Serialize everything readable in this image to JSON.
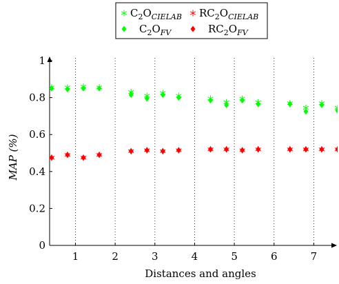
{
  "chart_data": {
    "type": "scatter",
    "xlabel": "Distances and angles",
    "ylabel": "MAP (%)",
    "xlim": [
      0.35,
      7.6
    ],
    "ylim": [
      0,
      1
    ],
    "xticks": [
      1,
      2,
      3,
      4,
      5,
      6,
      7
    ],
    "yticks": [
      0,
      0.2,
      0.4,
      0.6,
      0.8,
      1
    ],
    "ytick_labels": [
      "0",
      "0.2",
      "0.4",
      "0.6",
      "0.8",
      "1"
    ],
    "grid": "vertical dotted at integer x",
    "legend_position": "top",
    "x": [
      0.4,
      0.8,
      1.2,
      1.6,
      2.4,
      2.8,
      3.2,
      3.6,
      4.4,
      4.8,
      5.2,
      5.6,
      6.4,
      6.8,
      7.2,
      7.6
    ],
    "series": [
      {
        "name": "C2O",
        "name_sub": "CIELAB",
        "marker": "star",
        "color": "#00ff00",
        "values": [
          0.855,
          0.855,
          0.86,
          0.855,
          0.83,
          0.81,
          0.825,
          0.81,
          0.795,
          0.775,
          0.795,
          0.775,
          0.77,
          0.745,
          0.77,
          0.745
        ]
      },
      {
        "name": "RC2O",
        "name_sub": "CIELAB",
        "marker": "star",
        "color": "#ff0000",
        "values": [
          0.475,
          0.49,
          0.475,
          0.49,
          0.51,
          0.515,
          0.51,
          0.515,
          0.52,
          0.52,
          0.515,
          0.52,
          0.52,
          0.52,
          0.52,
          0.52
        ]
      },
      {
        "name": "C2O",
        "name_sub": "FV",
        "marker": "diamond",
        "color": "#00ff00",
        "values": [
          0.85,
          0.845,
          0.85,
          0.85,
          0.815,
          0.795,
          0.815,
          0.8,
          0.785,
          0.76,
          0.785,
          0.765,
          0.765,
          0.725,
          0.76,
          0.73
        ]
      },
      {
        "name": "RC2O",
        "name_sub": "FV",
        "marker": "diamond",
        "color": "#ff0000",
        "values": [
          0.475,
          0.49,
          0.475,
          0.49,
          0.51,
          0.515,
          0.51,
          0.515,
          0.52,
          0.52,
          0.515,
          0.52,
          0.52,
          0.52,
          0.52,
          0.52
        ]
      }
    ]
  }
}
